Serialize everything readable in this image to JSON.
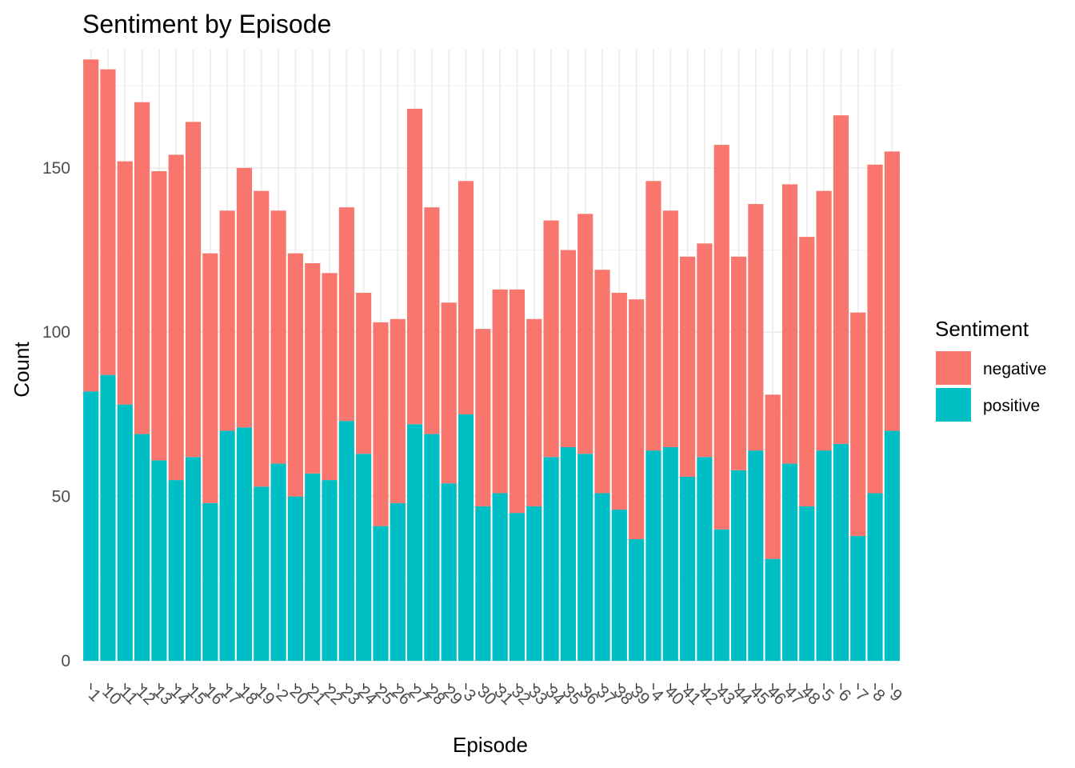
{
  "chart_data": {
    "type": "bar",
    "stacked": true,
    "title": "Sentiment by Episode",
    "xlabel": "Episode",
    "ylabel": "Count",
    "ylim": [
      0,
      186
    ],
    "y_ticks": [
      0,
      50,
      100,
      150
    ],
    "grid": true,
    "legend_title": "Sentiment",
    "legend_position": "right",
    "categories": [
      "1",
      "10",
      "11",
      "12",
      "13",
      "14",
      "15",
      "16",
      "17",
      "18",
      "19",
      "2",
      "20",
      "21",
      "22",
      "23",
      "24",
      "25",
      "26",
      "27",
      "28",
      "29",
      "3",
      "30",
      "31",
      "32",
      "33",
      "34",
      "35",
      "36",
      "37",
      "38",
      "39",
      "4",
      "40",
      "41",
      "42",
      "43",
      "44",
      "45",
      "46",
      "47",
      "48",
      "5",
      "6",
      "7",
      "8",
      "9"
    ],
    "series": [
      {
        "name": "negative",
        "color": "#F8766D",
        "values": [
          101,
          93,
          74,
          101,
          88,
          99,
          102,
          76,
          67,
          79,
          90,
          77,
          74,
          64,
          63,
          65,
          49,
          62,
          56,
          96,
          69,
          55,
          71,
          54,
          62,
          68,
          57,
          72,
          60,
          73,
          68,
          66,
          73,
          82,
          72,
          67,
          65,
          117,
          65,
          75,
          50,
          85,
          82,
          79,
          100,
          68,
          100,
          85
        ]
      },
      {
        "name": "positive",
        "color": "#00BFC4",
        "values": [
          82,
          87,
          78,
          69,
          61,
          55,
          62,
          48,
          70,
          71,
          53,
          60,
          50,
          57,
          55,
          73,
          63,
          41,
          48,
          72,
          69,
          54,
          75,
          47,
          51,
          45,
          47,
          62,
          65,
          63,
          51,
          46,
          37,
          64,
          65,
          56,
          62,
          40,
          58,
          64,
          31,
          60,
          47,
          64,
          66,
          38,
          51,
          70
        ]
      }
    ]
  }
}
